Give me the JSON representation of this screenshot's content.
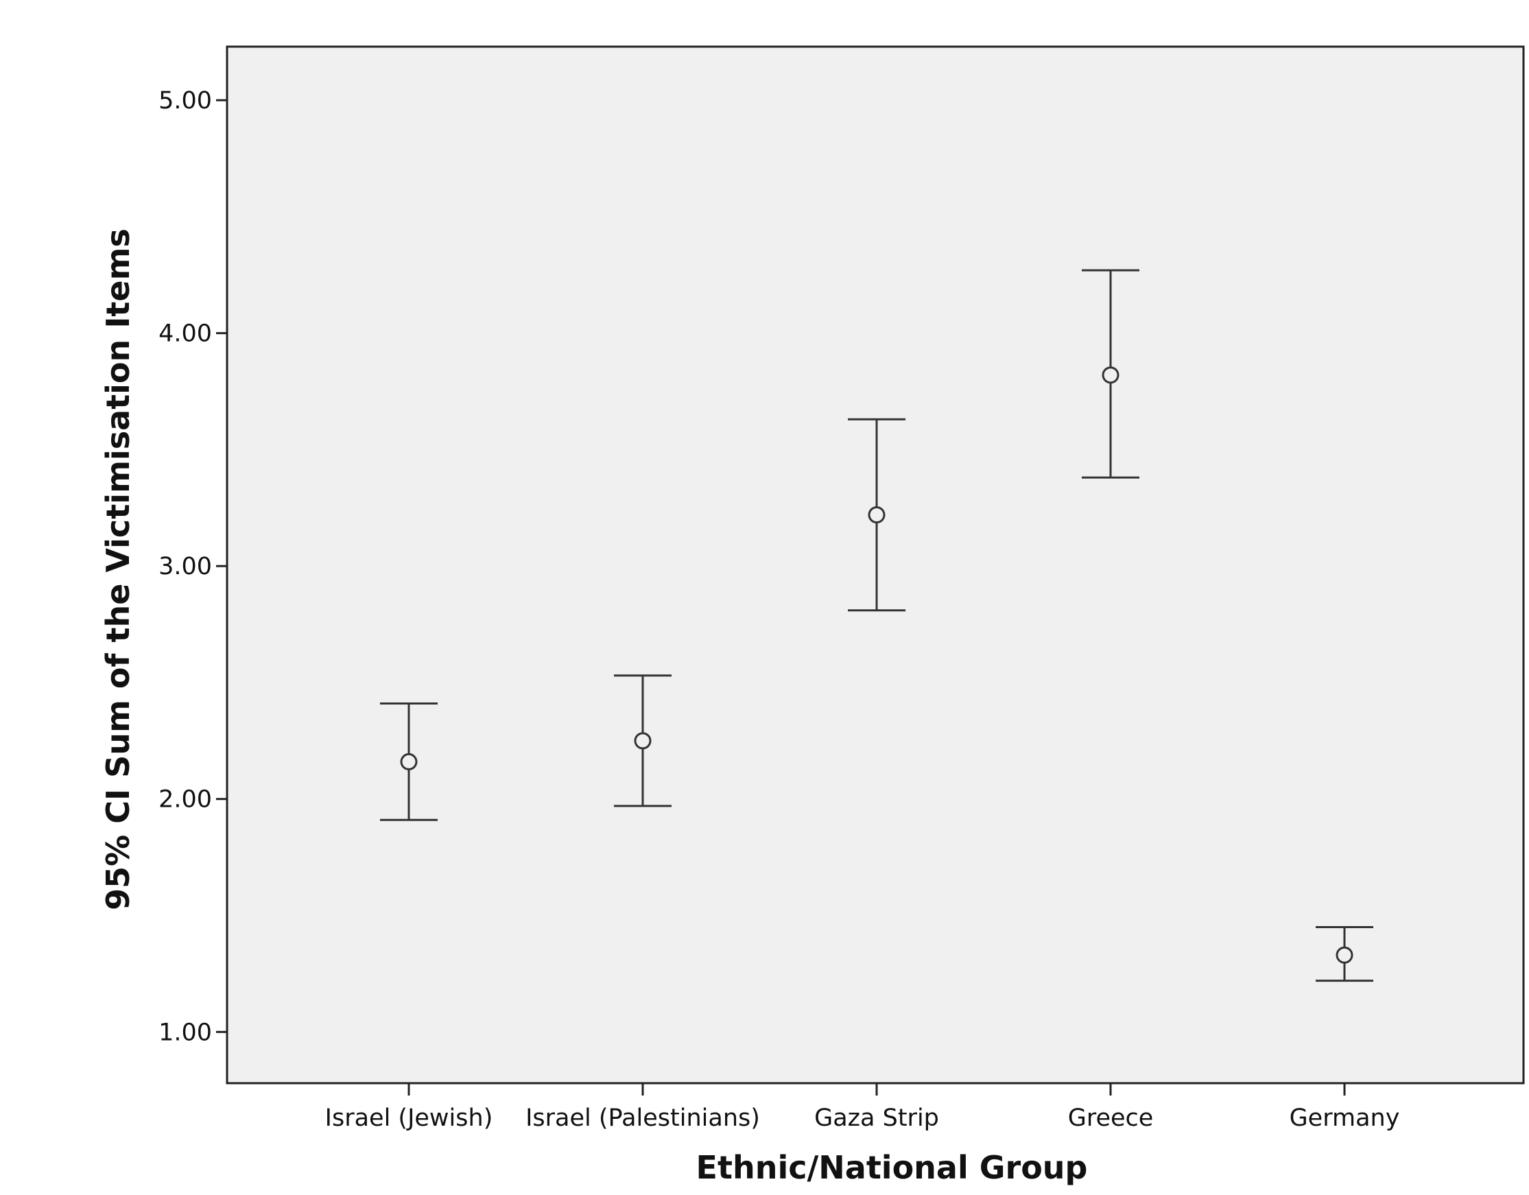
{
  "chart_data": {
    "type": "errorbar",
    "xlabel": "Ethnic/National Group",
    "ylabel": "95% CI Sum of the Victimisation Items",
    "categories": [
      "Israel (Jewish)",
      "Israel (Palestinians)",
      "Gaza Strip",
      "Greece",
      "Germany"
    ],
    "mean": [
      2.16,
      2.25,
      3.22,
      3.82,
      1.33
    ],
    "lower": [
      1.91,
      1.97,
      2.81,
      3.38,
      1.22
    ],
    "upper": [
      2.41,
      2.53,
      3.63,
      4.27,
      1.45
    ],
    "ylim": [
      0.78,
      5.23
    ],
    "yticks": [
      1,
      2,
      3,
      4,
      5
    ],
    "ytick_labels": [
      "1.00",
      "2.00",
      "3.00",
      "4.00",
      "5.00"
    ],
    "grid": false,
    "colors": {
      "plot_background": "#f0f0f0",
      "frame": "#222222",
      "marks": "#333333"
    }
  }
}
